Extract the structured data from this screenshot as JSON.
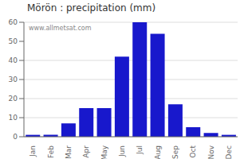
{
  "chart_data": {
    "type": "bar",
    "title": "Mörön : precipitation (mm)",
    "categories": [
      "Jan",
      "Feb",
      "Mar",
      "Apr",
      "May",
      "Jun",
      "Jul",
      "Aug",
      "Sep",
      "Oct",
      "Nov",
      "Dec"
    ],
    "values": [
      1,
      1,
      7,
      15,
      15,
      42,
      60,
      54,
      17,
      5,
      2,
      1
    ],
    "color": "#1818cc",
    "ylim": [
      0,
      60
    ],
    "yticks": [
      0,
      10,
      20,
      30,
      40,
      50,
      60
    ],
    "grid": true,
    "annotations": [
      "www.allmetsat.com"
    ]
  }
}
